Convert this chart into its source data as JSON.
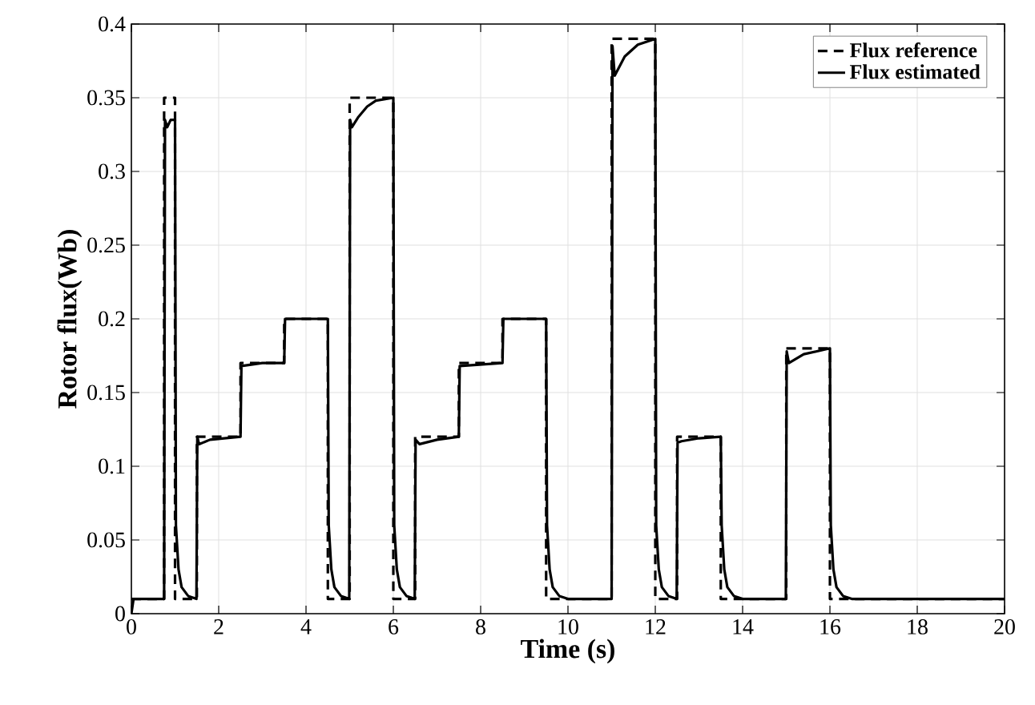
{
  "chart_data": {
    "type": "line",
    "xlabel": "Time (s)",
    "ylabel": "Rotor flux(Wb)",
    "xlim": [
      0,
      20
    ],
    "ylim": [
      0,
      0.4
    ],
    "xticks": [
      0,
      2,
      4,
      6,
      8,
      10,
      12,
      14,
      16,
      18,
      20
    ],
    "yticks": [
      0,
      0.05,
      0.1,
      0.15,
      0.2,
      0.25,
      0.3,
      0.35,
      0.4
    ],
    "grid": true,
    "legend": "top right",
    "series": [
      {
        "name": "Flux reference",
        "type": "step",
        "line_style": "dashed",
        "color": "#000000",
        "x": [
          0,
          0.75,
          1,
          1.5,
          2.5,
          3.5,
          4.5,
          5,
          6,
          6.5,
          7.5,
          8.5,
          9.5,
          11,
          12,
          12.5,
          13.5,
          15,
          16,
          20
        ],
        "values": [
          0.01,
          0.35,
          0.01,
          0.12,
          0.17,
          0.2,
          0.01,
          0.35,
          0.01,
          0.12,
          0.17,
          0.2,
          0.01,
          0.39,
          0.01,
          0.12,
          0.01,
          0.18,
          0.01,
          0.01
        ]
      },
      {
        "name": "Flux estimated",
        "line_style": "solid",
        "color": "#000000",
        "x": [
          0,
          0.05,
          0.75,
          0.77,
          0.82,
          0.9,
          1.0,
          1.02,
          1.08,
          1.15,
          1.3,
          1.49,
          1.51,
          1.55,
          1.8,
          2.5,
          2.52,
          3.0,
          3.5,
          3.52,
          4.5,
          4.52,
          4.58,
          4.65,
          4.8,
          4.99,
          5.01,
          5.05,
          5.2,
          5.4,
          5.6,
          6.0,
          6.02,
          6.08,
          6.15,
          6.3,
          6.49,
          6.51,
          6.6,
          7.0,
          7.5,
          7.52,
          8.5,
          8.52,
          9.5,
          9.52,
          9.58,
          9.65,
          9.8,
          10.0,
          11.0,
          11.02,
          11.07,
          11.3,
          11.6,
          12.0,
          12.02,
          12.08,
          12.15,
          12.3,
          12.49,
          12.51,
          12.6,
          13.0,
          13.5,
          13.52,
          13.58,
          13.65,
          13.8,
          14.0,
          14.99,
          15.01,
          15.06,
          15.4,
          16.0,
          16.02,
          16.08,
          16.15,
          16.3,
          16.5,
          20
        ],
        "values": [
          0,
          0.01,
          0.01,
          0.335,
          0.33,
          0.335,
          0.335,
          0.06,
          0.03,
          0.018,
          0.012,
          0.01,
          0.12,
          0.115,
          0.118,
          0.12,
          0.168,
          0.17,
          0.17,
          0.2,
          0.2,
          0.06,
          0.03,
          0.018,
          0.012,
          0.01,
          0.335,
          0.33,
          0.337,
          0.344,
          0.348,
          0.35,
          0.06,
          0.03,
          0.018,
          0.012,
          0.01,
          0.118,
          0.115,
          0.118,
          0.12,
          0.168,
          0.17,
          0.2,
          0.2,
          0.06,
          0.03,
          0.018,
          0.012,
          0.01,
          0.01,
          0.385,
          0.365,
          0.378,
          0.386,
          0.39,
          0.06,
          0.03,
          0.018,
          0.012,
          0.01,
          0.116,
          0.117,
          0.119,
          0.12,
          0.06,
          0.03,
          0.018,
          0.012,
          0.01,
          0.01,
          0.178,
          0.17,
          0.176,
          0.18,
          0.06,
          0.03,
          0.018,
          0.012,
          0.01,
          0.01
        ]
      }
    ]
  }
}
